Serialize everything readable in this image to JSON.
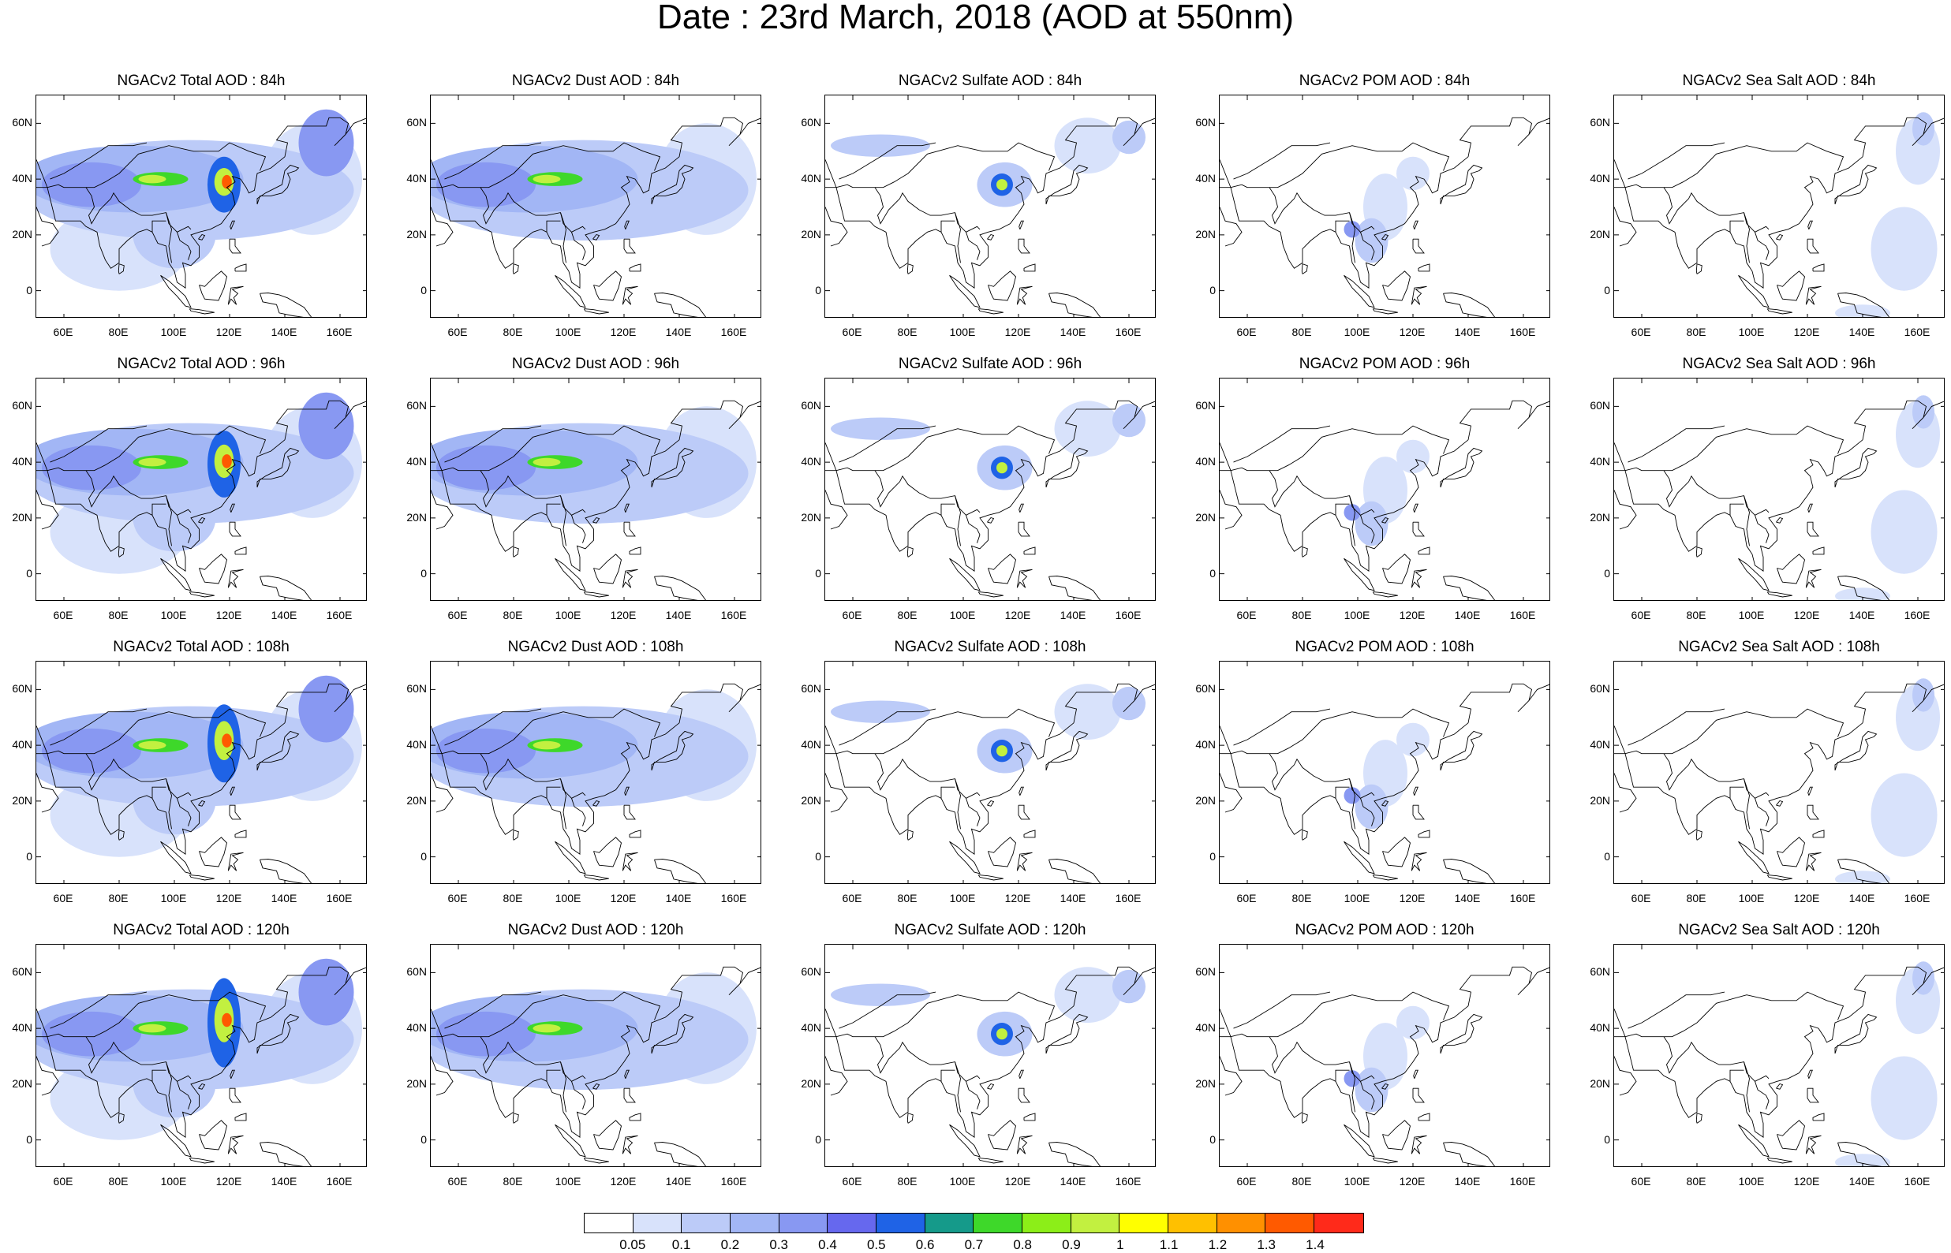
{
  "title": "Date : 23rd March, 2018 (AOD at 550nm)",
  "map": {
    "lon_range": [
      50,
      170
    ],
    "lat_range": [
      -10,
      70
    ],
    "lon_ticks": [
      "60E",
      "80E",
      "100E",
      "120E",
      "140E",
      "160E"
    ],
    "lat_ticks": [
      "60N",
      "40N",
      "20N",
      "0"
    ],
    "land_outline_color": "#000000",
    "ocean_color": "#ffffff"
  },
  "panels": [
    {
      "title": "NGACv2 Total AOD : 84h",
      "species": "total",
      "hour": 84
    },
    {
      "title": "NGACv2 Dust AOD : 84h",
      "species": "dust",
      "hour": 84
    },
    {
      "title": "NGACv2 Sulfate AOD : 84h",
      "species": "sulfate",
      "hour": 84
    },
    {
      "title": "NGACv2 POM AOD : 84h",
      "species": "pom",
      "hour": 84
    },
    {
      "title": "NGACv2 Sea Salt AOD : 84h",
      "species": "seasalt",
      "hour": 84
    },
    {
      "title": "NGACv2 Total AOD : 96h",
      "species": "total",
      "hour": 96
    },
    {
      "title": "NGACv2 Dust AOD : 96h",
      "species": "dust",
      "hour": 96
    },
    {
      "title": "NGACv2 Sulfate AOD : 96h",
      "species": "sulfate",
      "hour": 96
    },
    {
      "title": "NGACv2 POM AOD : 96h",
      "species": "pom",
      "hour": 96
    },
    {
      "title": "NGACv2 Sea Salt AOD : 96h",
      "species": "seasalt",
      "hour": 96
    },
    {
      "title": "NGACv2 Total AOD : 108h",
      "species": "total",
      "hour": 108
    },
    {
      "title": "NGACv2 Dust AOD : 108h",
      "species": "dust",
      "hour": 108
    },
    {
      "title": "NGACv2 Sulfate AOD : 108h",
      "species": "sulfate",
      "hour": 108
    },
    {
      "title": "NGACv2 POM AOD : 108h",
      "species": "pom",
      "hour": 108
    },
    {
      "title": "NGACv2 Sea Salt AOD : 108h",
      "species": "seasalt",
      "hour": 108
    },
    {
      "title": "NGACv2 Total AOD : 120h",
      "species": "total",
      "hour": 120
    },
    {
      "title": "NGACv2 Dust AOD : 120h",
      "species": "dust",
      "hour": 120
    },
    {
      "title": "NGACv2 Sulfate AOD : 120h",
      "species": "sulfate",
      "hour": 120
    },
    {
      "title": "NGACv2 POM AOD : 120h",
      "species": "pom",
      "hour": 120
    },
    {
      "title": "NGACv2 Sea Salt  AOD : 120h",
      "species": "seasalt",
      "hour": 120
    }
  ],
  "colorbar": {
    "levels": [
      "0.05",
      "0.1",
      "0.2",
      "0.3",
      "0.4",
      "0.5",
      "0.6",
      "0.7",
      "0.8",
      "0.9",
      "1",
      "1.1",
      "1.2",
      "1.3",
      "1.4"
    ],
    "colors": [
      "#ffffff",
      "#d8e2fb",
      "#bccbf8",
      "#a2b6f5",
      "#8898f2",
      "#6668ee",
      "#1f63e6",
      "#159a8a",
      "#3ed82a",
      "#8cee18",
      "#c2f040",
      "#ffff00",
      "#ffc000",
      "#ff9000",
      "#ff5a00",
      "#ff2a1a"
    ]
  }
}
